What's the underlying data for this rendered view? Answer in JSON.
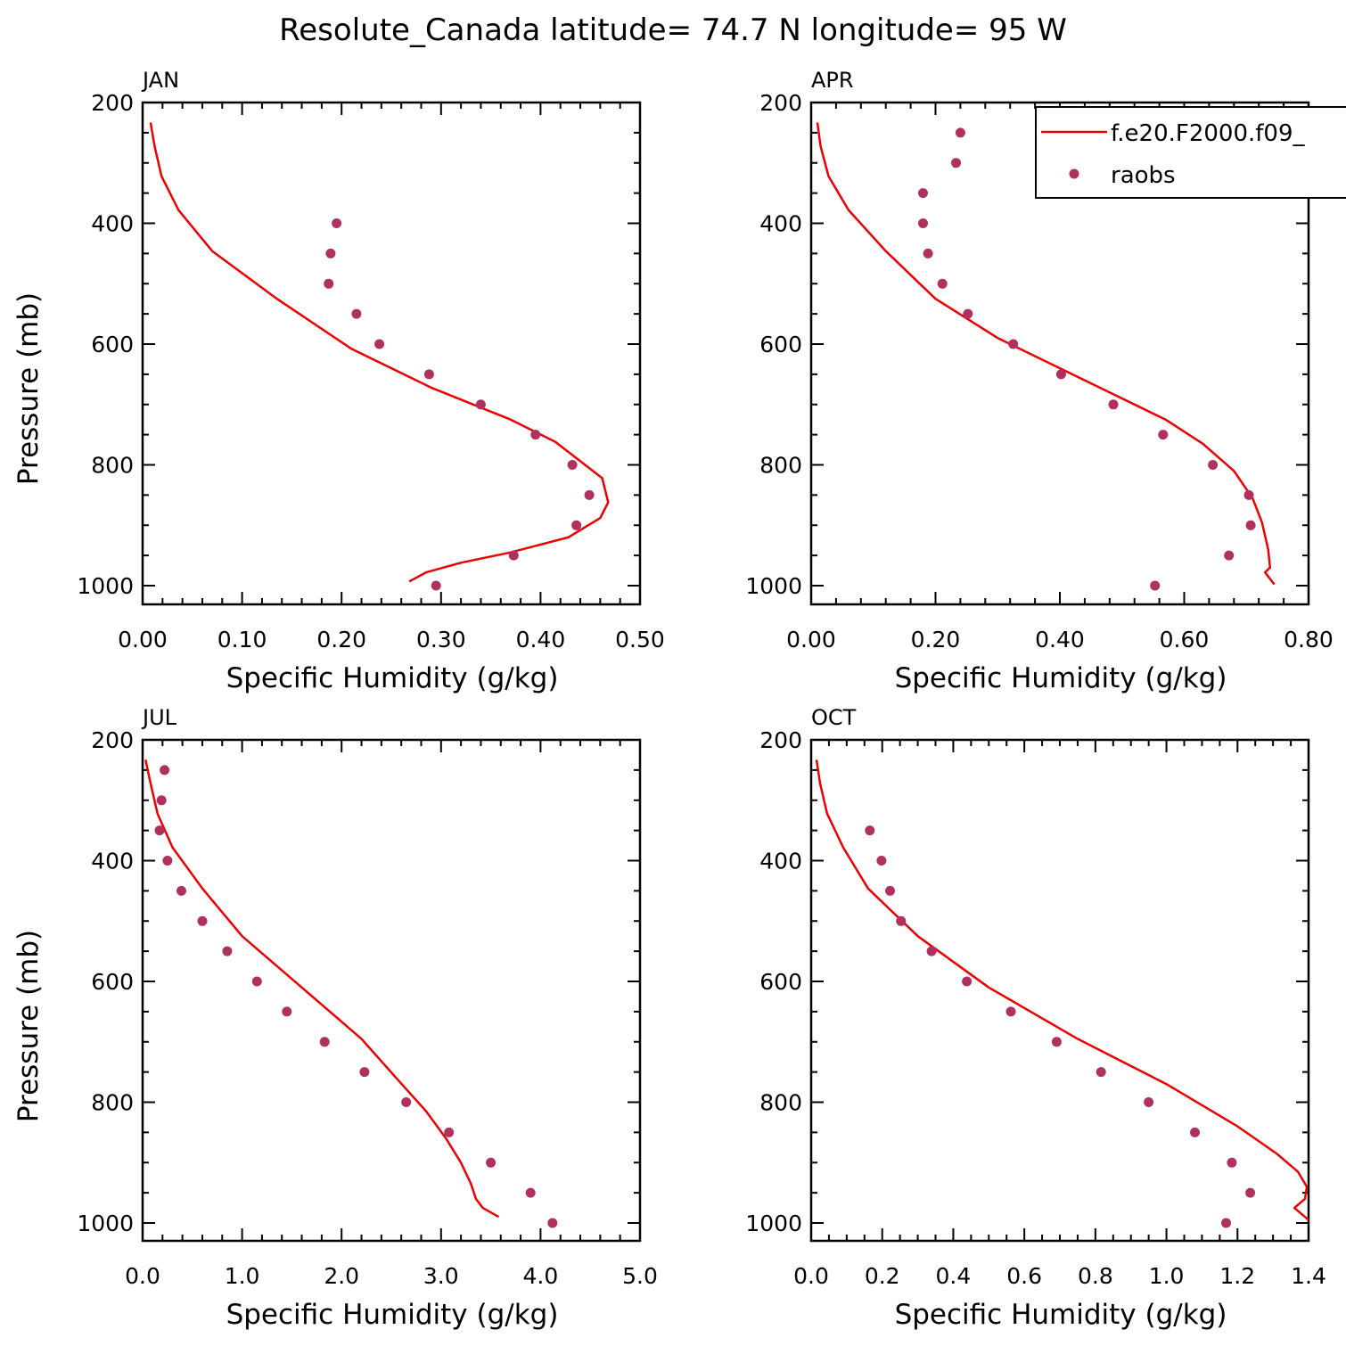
{
  "title": "Resolute_Canada  latitude= 74.7 N longitude= 95 W",
  "legend": {
    "model_label": "f.e20.F2000.f09_",
    "obs_label": "raobs",
    "model_color": "#ee0000",
    "obs_color": "#b03060"
  },
  "chart_data": [
    {
      "type": "line+scatter",
      "panel_label": "JAN",
      "xlabel": "Specific Humidity (g/kg)",
      "ylabel": "Pressure (mb)",
      "xlim": [
        0,
        0.5
      ],
      "ylim": [
        1000,
        200
      ],
      "x_ticks": [
        "0.00",
        "0.10",
        "0.20",
        "0.30",
        "0.40",
        "0.50"
      ],
      "y_ticks": [
        "200",
        "400",
        "600",
        "800",
        "1000"
      ],
      "model": {
        "name": "f.e20.F2000.f09_",
        "x": [
          0.008,
          0.012,
          0.019,
          0.036,
          0.07,
          0.135,
          0.21,
          0.29,
          0.37,
          0.415,
          0.462,
          0.468,
          0.46,
          0.428,
          0.37,
          0.32,
          0.285,
          0.268
        ],
        "y": [
          233,
          272,
          322,
          378,
          446,
          525,
          608,
          672,
          725,
          762,
          822,
          862,
          888,
          920,
          945,
          962,
          978,
          993
        ]
      },
      "obs": {
        "name": "raobs",
        "x": [
          0.195,
          0.189,
          0.187,
          0.215,
          0.238,
          0.288,
          0.34,
          0.395,
          0.432,
          0.449,
          0.436,
          0.373,
          0.295
        ],
        "y": [
          400,
          450,
          500,
          550,
          600,
          650,
          700,
          750,
          800,
          850,
          900,
          950,
          1000
        ]
      }
    },
    {
      "type": "line+scatter",
      "panel_label": "APR",
      "xlabel": "Specific Humidity (g/kg)",
      "ylabel": "Pressure (mb)",
      "xlim": [
        0,
        0.8
      ],
      "ylim": [
        1000,
        200
      ],
      "x_ticks": [
        "0.00",
        "0.20",
        "0.40",
        "0.60",
        "0.80"
      ],
      "y_ticks": [
        "200",
        "400",
        "600",
        "800",
        "1000"
      ],
      "model": {
        "name": "f.e20.F2000.f09_",
        "x": [
          0.01,
          0.015,
          0.028,
          0.06,
          0.12,
          0.2,
          0.3,
          0.4,
          0.5,
          0.57,
          0.63,
          0.68,
          0.71,
          0.725,
          0.735,
          0.738,
          0.73,
          0.745
        ],
        "y": [
          233,
          272,
          322,
          378,
          446,
          525,
          590,
          640,
          690,
          725,
          765,
          810,
          855,
          895,
          940,
          970,
          978,
          998
        ]
      },
      "obs": {
        "name": "raobs",
        "x": [
          0.24,
          0.233,
          0.18,
          0.18,
          0.188,
          0.211,
          0.252,
          0.325,
          0.402,
          0.486,
          0.566,
          0.646,
          0.704,
          0.707,
          0.672,
          0.553
        ],
        "y": [
          250,
          300,
          350,
          400,
          450,
          500,
          550,
          600,
          650,
          700,
          750,
          800,
          850,
          900,
          950,
          1000
        ]
      }
    },
    {
      "type": "line+scatter",
      "panel_label": "JUL",
      "xlabel": "Specific Humidity (g/kg)",
      "ylabel": "Pressure (mb)",
      "xlim": [
        0,
        5
      ],
      "ylim": [
        1000,
        200
      ],
      "x_ticks": [
        "0.0",
        "1.0",
        "2.0",
        "3.0",
        "4.0",
        "5.0"
      ],
      "y_ticks": [
        "200",
        "400",
        "600",
        "800",
        "1000"
      ],
      "model": {
        "name": "f.e20.F2000.f09_",
        "x": [
          0.03,
          0.08,
          0.15,
          0.3,
          0.6,
          1.0,
          1.6,
          2.2,
          2.55,
          2.85,
          3.05,
          3.2,
          3.3,
          3.35,
          3.42,
          3.58
        ],
        "y": [
          233,
          272,
          322,
          378,
          446,
          525,
          610,
          695,
          760,
          815,
          860,
          900,
          935,
          960,
          975,
          990
        ]
      },
      "obs": {
        "name": "raobs",
        "x": [
          0.22,
          0.19,
          0.17,
          0.25,
          0.39,
          0.6,
          0.85,
          1.15,
          1.45,
          1.83,
          2.23,
          2.65,
          3.08,
          3.5,
          3.9,
          4.12
        ],
        "y": [
          250,
          300,
          350,
          400,
          450,
          500,
          550,
          600,
          650,
          700,
          750,
          800,
          850,
          900,
          950,
          1000
        ]
      }
    },
    {
      "type": "line+scatter",
      "panel_label": "OCT",
      "xlabel": "Specific Humidity (g/kg)",
      "ylabel": "Pressure (mb)",
      "xlim": [
        0,
        1.4
      ],
      "ylim": [
        1000,
        200
      ],
      "x_ticks": [
        "0.0",
        "0.2",
        "0.4",
        "0.6",
        "0.8",
        "1.0",
        "1.2",
        "1.4"
      ],
      "y_ticks": [
        "200",
        "400",
        "600",
        "800",
        "1000"
      ],
      "model": {
        "name": "f.e20.F2000.f09_",
        "x": [
          0.015,
          0.025,
          0.045,
          0.09,
          0.16,
          0.3,
          0.5,
          0.75,
          1.0,
          1.2,
          1.31,
          1.37,
          1.395,
          1.39,
          1.36,
          1.4
        ],
        "y": [
          233,
          272,
          322,
          378,
          446,
          525,
          610,
          695,
          770,
          840,
          885,
          915,
          940,
          960,
          975,
          995
        ]
      },
      "obs": {
        "name": "raobs",
        "x": [
          0.165,
          0.198,
          0.222,
          0.253,
          0.339,
          0.438,
          0.562,
          0.691,
          0.816,
          0.95,
          1.08,
          1.184,
          1.236,
          1.168
        ],
        "y": [
          350,
          400,
          450,
          500,
          550,
          600,
          650,
          700,
          750,
          800,
          850,
          900,
          950,
          1000
        ]
      }
    }
  ]
}
